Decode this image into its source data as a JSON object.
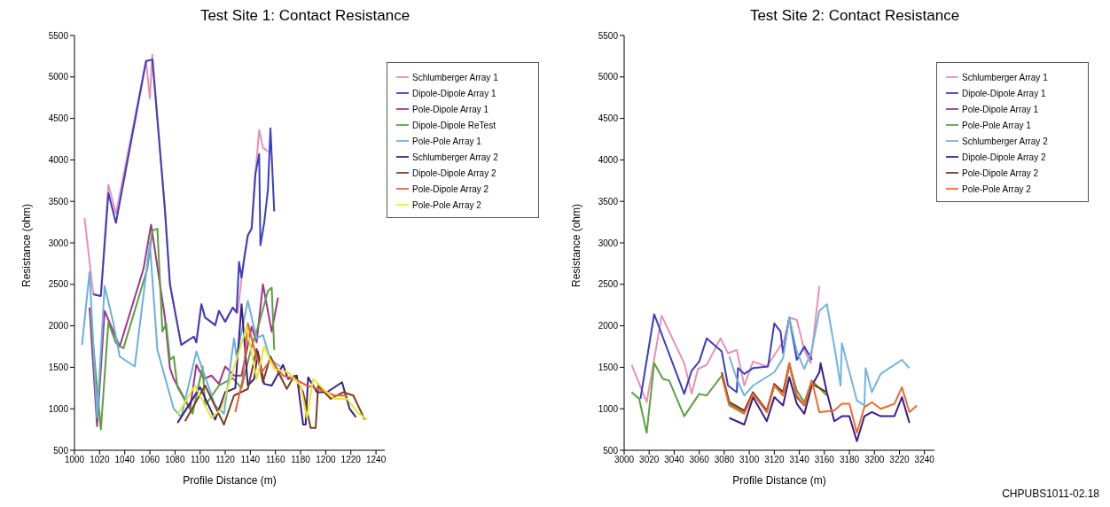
{
  "chart_data": [
    {
      "type": "line",
      "title": "Test Site 1: Contact Resistance",
      "xlabel": "Profile Distance (m)",
      "ylabel": "Resistance (ohm)",
      "xlim": [
        1000,
        1247
      ],
      "xticks": [
        1000,
        1020,
        1040,
        1060,
        1080,
        1100,
        1120,
        1140,
        1160,
        1180,
        1200,
        1220,
        1240
      ],
      "ylim": [
        500,
        5500
      ],
      "yticks": [
        500,
        1000,
        1500,
        2000,
        2500,
        3000,
        3500,
        4000,
        4500,
        5000,
        5500
      ],
      "grid": false,
      "legend": "top right",
      "marker": "none",
      "line_style": "solid",
      "series": [
        {
          "name": "Schlumberger Array 1",
          "color": "#e891b4",
          "x": [
            1008,
            1015,
            1021,
            1027,
            1033,
            1057,
            1060,
            1062,
            1072,
            1076,
            1085,
            1095,
            1097,
            1101,
            1104,
            1112,
            1115,
            1120,
            1126,
            1130,
            1133,
            1138,
            1141,
            1144,
            1147,
            1150,
            1154
          ],
          "values": [
            3300,
            2380,
            2360,
            3700,
            3350,
            5200,
            4740,
            5270,
            3400,
            2500,
            1770,
            1870,
            1800,
            2260,
            2100,
            2000,
            2180,
            2050,
            2220,
            2160,
            2580,
            3090,
            3170,
            3830,
            4360,
            4150,
            4100
          ]
        },
        {
          "name": "Dipole-Dipole Array 1",
          "color": "#3a3ec0",
          "x": [
            1015,
            1021,
            1027,
            1033,
            1057,
            1062,
            1072,
            1076,
            1085,
            1095,
            1097,
            1101,
            1104,
            1112,
            1115,
            1120,
            1126,
            1129,
            1131,
            1133,
            1135,
            1138,
            1141,
            1144,
            1147,
            1148,
            1151,
            1154,
            1156,
            1159
          ],
          "values": [
            2380,
            2360,
            3600,
            3240,
            5190,
            5210,
            3400,
            2500,
            1770,
            1870,
            1800,
            2260,
            2100,
            2010,
            2180,
            2050,
            2220,
            2160,
            2770,
            2580,
            2810,
            3090,
            3170,
            3830,
            4070,
            2970,
            3240,
            3640,
            4380,
            3380
          ]
        },
        {
          "name": "Pole-Dipole Array 1",
          "color": "#a0348c",
          "x": [
            1012,
            1018,
            1024,
            1036,
            1055,
            1061,
            1072,
            1076,
            1079,
            1092,
            1097,
            1103,
            1109,
            1115,
            1120,
            1127,
            1133,
            1141,
            1145,
            1150,
            1157,
            1162
          ],
          "values": [
            2220,
            790,
            2180,
            1750,
            2690,
            3220,
            2100,
            1490,
            1360,
            1000,
            1530,
            1360,
            1400,
            1300,
            1510,
            1400,
            1400,
            1990,
            1800,
            2500,
            1930,
            2340
          ]
        },
        {
          "name": "Dipole-Dipole ReTest",
          "color": "#5aa040",
          "x": [
            1013,
            1021,
            1027,
            1033,
            1039,
            1058,
            1062,
            1066,
            1070,
            1073,
            1076,
            1079,
            1082,
            1094,
            1102,
            1104,
            1115,
            1126,
            1133,
            1141,
            1147,
            1154,
            1157,
            1159
          ],
          "values": [
            2100,
            750,
            2040,
            1790,
            1730,
            2690,
            3150,
            3170,
            1930,
            2030,
            1590,
            1630,
            1260,
            940,
            1510,
            1040,
            1280,
            1370,
            1250,
            1750,
            2030,
            2420,
            2460,
            1710
          ]
        },
        {
          "name": "Pole-Pole Array 1",
          "color": "#6ab0dc",
          "x": [
            1006,
            1012,
            1018,
            1024,
            1031,
            1036,
            1048,
            1060,
            1066,
            1079,
            1085,
            1097,
            1112,
            1119,
            1127,
            1129,
            1138,
            1145,
            1150,
            1156,
            1164
          ],
          "values": [
            1770,
            2650,
            890,
            2480,
            2030,
            1630,
            1510,
            3000,
            1710,
            1000,
            900,
            1690,
            1040,
            940,
            1850,
            1630,
            2300,
            1850,
            1890,
            1590,
            1510
          ]
        },
        {
          "name": "Schlumberger Array 2",
          "color": "#3a1f8c",
          "x": [
            1082,
            1100,
            1112,
            1120,
            1128,
            1133,
            1138,
            1143,
            1146,
            1151,
            1157,
            1166,
            1170,
            1177,
            1182,
            1184,
            1186,
            1193,
            1201,
            1213,
            1219,
            1224
          ],
          "values": [
            830,
            1260,
            870,
            1200,
            1250,
            2260,
            1280,
            1360,
            1690,
            1300,
            1280,
            1530,
            1360,
            1400,
            810,
            810,
            1380,
            1200,
            1200,
            1320,
            1000,
            900
          ]
        },
        {
          "name": "Dipole-Dipole Array 2",
          "color": "#7a3f20",
          "x": [
            1088,
            1104,
            1119,
            1127,
            1138,
            1145,
            1150,
            1156,
            1169,
            1175,
            1182,
            1188,
            1192,
            1194,
            1204,
            1214,
            1222,
            1231
          ],
          "values": [
            850,
            1280,
            810,
            1160,
            1240,
            1720,
            1320,
            1630,
            1240,
            1400,
            1200,
            770,
            770,
            1280,
            1120,
            1200,
            1160,
            870
          ]
        },
        {
          "name": "Pole-Dipole Array 2",
          "color": "#e8603c",
          "x": [
            1128,
            1134,
            1138,
            1144,
            1149,
            1156,
            1166,
            1175,
            1185,
            1194,
            1207,
            1217
          ],
          "values": [
            960,
            1360,
            2030,
            1670,
            1440,
            1590,
            1400,
            1360,
            1280,
            1240,
            1160,
            1160
          ]
        },
        {
          "name": "Pole-Pole Array 2",
          "color": "#e8e830",
          "x": [
            1082,
            1096,
            1109,
            1117,
            1137,
            1145,
            1151,
            1159,
            1170,
            1180,
            1185,
            1190,
            1198,
            1207,
            1217,
            1225,
            1233
          ],
          "values": [
            930,
            1280,
            890,
            1000,
            1990,
            1360,
            1750,
            1480,
            1440,
            1280,
            890,
            1360,
            1240,
            1120,
            1120,
            960,
            870
          ]
        }
      ]
    },
    {
      "type": "line",
      "title": "Test Site 2: Contact Resistance",
      "xlabel": "Profile Distance (m)",
      "ylabel": "Resistance (ohm)",
      "xlim": [
        3000,
        3248
      ],
      "xticks": [
        3000,
        3020,
        3040,
        3060,
        3080,
        3100,
        3120,
        3140,
        3160,
        3180,
        3200,
        3220,
        3240
      ],
      "ylim": [
        500,
        5500
      ],
      "yticks": [
        500,
        1000,
        1500,
        2000,
        2500,
        3000,
        3500,
        4000,
        4500,
        5000,
        5500
      ],
      "grid": false,
      "legend": "top right",
      "marker": "none",
      "line_style": "solid",
      "annotations": [
        "CHPUBS1011-02.18"
      ],
      "series": [
        {
          "name": "Schlumberger Array 1",
          "color": "#e891b4",
          "x": [
            3006,
            3018,
            3030,
            3048,
            3054,
            3059,
            3066,
            3077,
            3083,
            3090,
            3096,
            3103,
            3114,
            3128,
            3132,
            3138,
            3144,
            3149,
            3156
          ],
          "values": [
            1530,
            1080,
            2120,
            1550,
            1180,
            1480,
            1530,
            1850,
            1670,
            1710,
            1280,
            1570,
            1510,
            1830,
            2100,
            2070,
            1710,
            1550,
            2480
          ]
        },
        {
          "name": "Dipole-Dipole Array 1",
          "color": "#3a3ec0",
          "x": [
            3013,
            3024,
            3048,
            3054,
            3060,
            3066,
            3078,
            3083,
            3090,
            3091,
            3096,
            3103,
            3115,
            3120,
            3125,
            3127,
            3132,
            3138,
            3144,
            3150
          ],
          "values": [
            1120,
            2140,
            1180,
            1460,
            1570,
            1850,
            1690,
            1280,
            1200,
            1490,
            1420,
            1490,
            1510,
            2030,
            1930,
            1670,
            2100,
            1590,
            1750,
            1590
          ]
        },
        {
          "name": "Pole-Dipole Array 1",
          "color": "#a0348c"
        },
        {
          "name": "Pole-Pole Array 1",
          "color": "#5aa040",
          "x": [
            3006,
            3012,
            3018,
            3024,
            3031,
            3036,
            3048,
            3060,
            3066,
            3078,
            3084,
            3096,
            3103,
            3114,
            3120,
            3128,
            3132,
            3138,
            3144,
            3150,
            3162
          ],
          "values": [
            1200,
            1120,
            710,
            1550,
            1360,
            1340,
            910,
            1180,
            1160,
            1400,
            1060,
            960,
            1180,
            960,
            1280,
            1200,
            1530,
            1220,
            1080,
            1340,
            1160
          ]
        },
        {
          "name": "Schlumberger Array 2",
          "color": "#72b4e0",
          "x": [
            3084,
            3090,
            3096,
            3103,
            3120,
            3127,
            3132,
            3138,
            3144,
            3150,
            3156,
            3162,
            3168,
            3173,
            3174,
            3186,
            3192,
            3193,
            3198,
            3205,
            3222,
            3228
          ],
          "values": [
            1630,
            1360,
            1160,
            1280,
            1440,
            1610,
            2100,
            1690,
            1480,
            1710,
            2180,
            2260,
            1750,
            1280,
            1790,
            1100,
            1040,
            1490,
            1200,
            1420,
            1590,
            1490
          ]
        },
        {
          "name": "Dipole-Dipole Array 2",
          "color": "#3c1c90",
          "x": [
            3084,
            3096,
            3103,
            3114,
            3120,
            3127,
            3132,
            3138,
            3144,
            3150,
            3156,
            3157,
            3162,
            3168,
            3174,
            3180,
            3186,
            3192,
            3198,
            3205,
            3216,
            3222,
            3228
          ],
          "values": [
            890,
            810,
            1140,
            850,
            1140,
            1040,
            1380,
            1060,
            940,
            1280,
            1440,
            1550,
            1200,
            850,
            910,
            910,
            610,
            910,
            960,
            910,
            910,
            1140,
            830
          ]
        },
        {
          "name": "Pole-Dipole Array 2",
          "color": "#6b3a24",
          "x": [
            3078,
            3084,
            3096,
            3103,
            3114,
            3120,
            3127,
            3132,
            3138,
            3144,
            3150,
            3162
          ],
          "values": [
            1440,
            1080,
            980,
            1200,
            980,
            1300,
            1200,
            1550,
            1140,
            1040,
            1300,
            1200
          ]
        },
        {
          "name": "Pole-Pole Array 2",
          "color": "#f06a28",
          "x": [
            3078,
            3084,
            3096,
            3103,
            3114,
            3120,
            3127,
            3132,
            3138,
            3144,
            3150,
            3156,
            3168,
            3174,
            3180,
            3186,
            3192,
            3198,
            3205,
            3216,
            3222,
            3228,
            3234
          ],
          "values": [
            1400,
            1040,
            940,
            1180,
            960,
            1280,
            1160,
            1550,
            1160,
            1040,
            1340,
            960,
            980,
            1060,
            1060,
            710,
            1020,
            1080,
            1000,
            1060,
            1260,
            960,
            1040
          ]
        }
      ]
    }
  ]
}
